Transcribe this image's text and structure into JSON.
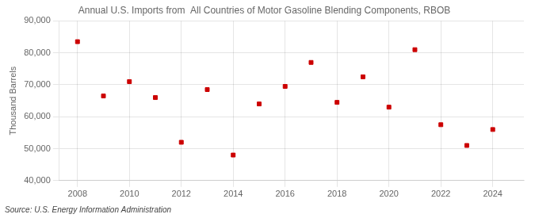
{
  "chart_data": {
    "type": "scatter",
    "title": "Annual U.S. Imports from  All Countries of Motor Gasoline Blending Components, RBOB",
    "ylabel": "Thousand Barrels",
    "annotation": "Source: U.S. Energy Information Administration",
    "x": [
      2008,
      2009,
      2010,
      2011,
      2012,
      2013,
      2014,
      2015,
      2016,
      2017,
      2018,
      2019,
      2020,
      2021,
      2022,
      2023,
      2024
    ],
    "values": [
      83500,
      66500,
      71000,
      66000,
      52000,
      68500,
      48000,
      64000,
      69500,
      77000,
      64500,
      72500,
      63000,
      81000,
      57500,
      51000,
      56000
    ],
    "color": "#cc0000",
    "marker": "square",
    "xlim": [
      2007.3,
      2025.2
    ],
    "xticks": [
      2008,
      2010,
      2012,
      2014,
      2016,
      2018,
      2020,
      2022,
      2024
    ],
    "ylim": [
      40000,
      90000
    ],
    "yticks": [
      {
        "value": 40000,
        "label": "40,000"
      },
      {
        "value": 50000,
        "label": "50,000"
      },
      {
        "value": 60000,
        "label": "60,000"
      },
      {
        "value": 70000,
        "label": "70,000"
      },
      {
        "value": 80000,
        "label": "80,000"
      },
      {
        "value": 90000,
        "label": "90,000"
      }
    ],
    "grid": true
  }
}
